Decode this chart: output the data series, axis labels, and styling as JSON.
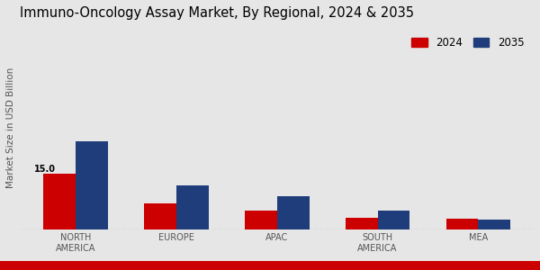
{
  "title": "Immuno-Oncology Assay Market, By Regional, 2024 & 2035",
  "ylabel": "Market Size in USD Billion",
  "categories": [
    "NORTH\nAMERICA",
    "EUROPE",
    "APAC",
    "SOUTH\nAMERICA",
    "MEA"
  ],
  "values_2024": [
    15.0,
    7.0,
    5.0,
    3.0,
    2.8
  ],
  "values_2035": [
    24.0,
    12.0,
    9.0,
    5.0,
    2.5
  ],
  "color_2024": "#cc0000",
  "color_2035": "#1f3d7a",
  "annotation_value": "15.0",
  "bar_width": 0.32,
  "background_color": "#e6e6e6",
  "title_fontsize": 10.5,
  "label_fontsize": 7.5,
  "tick_fontsize": 7,
  "legend_fontsize": 8.5,
  "bottom_bar_color": "#cc0000",
  "ylim": [
    0,
    55
  ]
}
